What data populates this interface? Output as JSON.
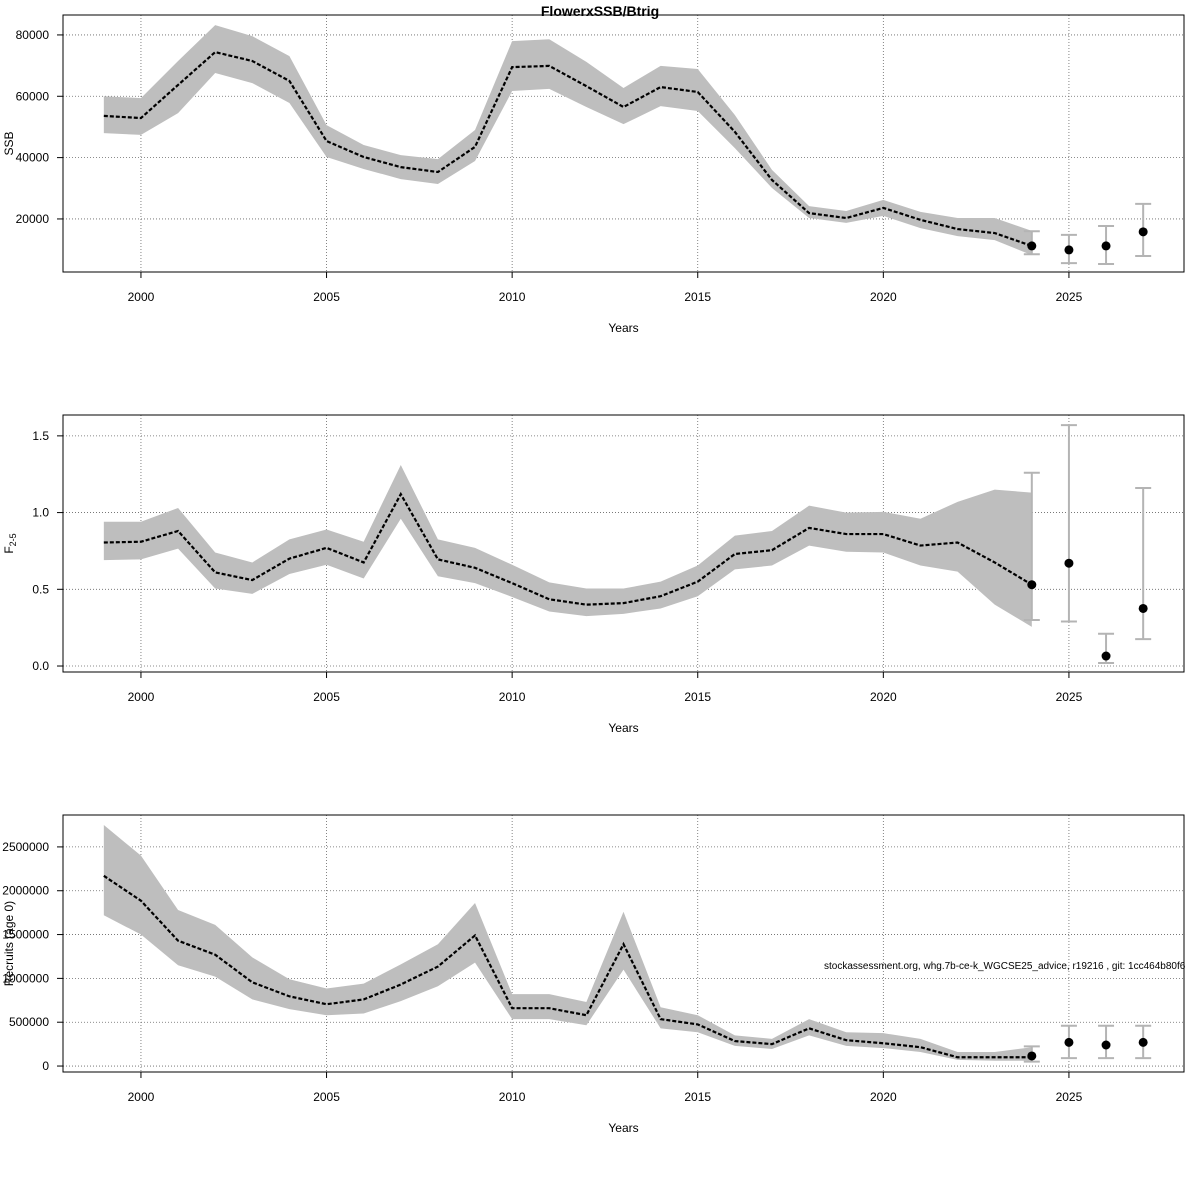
{
  "title": "FlowerxSSB/Btrig",
  "annotation": "stockassessment.org, whg.7b-ce-k_WGCSE25_advice, r19216 , git: 1cc464b80f6",
  "colors": {
    "band": "#bebebe",
    "line": "#000000",
    "errorbar": "#b4b4b4",
    "grid": "#666666"
  },
  "chart_data": [
    {
      "type": "line",
      "title": "FlowerxSSB/Btrig",
      "xlabel": "Years",
      "ylabel": "SSB",
      "ylabel_sub": "",
      "xlim": [
        1997.9,
        2028.1
      ],
      "ylim": [
        2700,
        86500
      ],
      "xticks": [
        2000,
        2005,
        2010,
        2015,
        2020,
        2025
      ],
      "yticks": [
        20000,
        40000,
        60000,
        80000
      ],
      "ytick_labels": [
        "20000",
        "40000",
        "60000",
        "80000"
      ],
      "grid": true,
      "years": [
        1999,
        2000,
        2001,
        2002,
        2003,
        2004,
        2005,
        2006,
        2007,
        2008,
        2009,
        2010,
        2011,
        2012,
        2013,
        2014,
        2015,
        2016,
        2017,
        2018,
        2019,
        2020,
        2021,
        2022,
        2023,
        2024
      ],
      "estimate": [
        53600,
        52900,
        63700,
        74400,
        71500,
        65000,
        45400,
        40200,
        36900,
        35300,
        43500,
        69500,
        69900,
        63300,
        56500,
        63000,
        61400,
        48400,
        32700,
        21900,
        20300,
        23600,
        19700,
        16700,
        15400,
        11200
      ],
      "upper": [
        60000,
        59400,
        71500,
        83200,
        79600,
        73100,
        50600,
        44100,
        40800,
        39500,
        49000,
        78000,
        78600,
        71200,
        62700,
        69900,
        68900,
        53900,
        36000,
        24200,
        22600,
        26200,
        22300,
        20300,
        20300,
        16100
      ],
      "lower": [
        48000,
        47400,
        54500,
        67600,
        64300,
        57800,
        40200,
        36300,
        33000,
        31400,
        38900,
        61700,
        62400,
        56500,
        50900,
        56800,
        55200,
        43100,
        30100,
        20300,
        18700,
        21000,
        17000,
        14400,
        13100,
        8200
      ],
      "forecast": [
        {
          "year": 2024,
          "value": 11200,
          "low": 8500,
          "high": 16000
        },
        {
          "year": 2025,
          "value": 9900,
          "low": 5600,
          "high": 14800
        },
        {
          "year": 2026,
          "value": 11200,
          "low": 5300,
          "high": 17700
        },
        {
          "year": 2027,
          "value": 15800,
          "low": 7900,
          "high": 24900
        }
      ]
    },
    {
      "type": "line",
      "title": "",
      "xlabel": "Years",
      "ylabel": "F",
      "ylabel_sub": "2-5",
      "xlim": [
        1997.9,
        2028.1
      ],
      "ylim": [
        -0.039,
        1.636
      ],
      "xticks": [
        2000,
        2005,
        2010,
        2015,
        2020,
        2025
      ],
      "yticks": [
        0,
        0.5,
        1.0,
        1.5
      ],
      "ytick_labels": [
        "0.0",
        "0.5",
        "1.0",
        "1.5"
      ],
      "grid": true,
      "years": [
        1999,
        2000,
        2001,
        2002,
        2003,
        2004,
        2005,
        2006,
        2007,
        2008,
        2009,
        2010,
        2011,
        2012,
        2013,
        2014,
        2015,
        2016,
        2017,
        2018,
        2019,
        2020,
        2021,
        2022,
        2023,
        2024
      ],
      "estimate": [
        0.805,
        0.81,
        0.88,
        0.61,
        0.56,
        0.7,
        0.77,
        0.675,
        1.12,
        0.695,
        0.64,
        0.54,
        0.435,
        0.4,
        0.41,
        0.455,
        0.55,
        0.73,
        0.755,
        0.9,
        0.86,
        0.86,
        0.785,
        0.805,
        0.675,
        0.53
      ],
      "upper": [
        0.94,
        0.94,
        1.03,
        0.74,
        0.675,
        0.825,
        0.89,
        0.81,
        1.31,
        0.825,
        0.77,
        0.66,
        0.545,
        0.505,
        0.505,
        0.55,
        0.655,
        0.85,
        0.88,
        1.045,
        1.0,
        1.005,
        0.96,
        1.07,
        1.15,
        1.13
      ],
      "lower": [
        0.69,
        0.695,
        0.765,
        0.505,
        0.47,
        0.6,
        0.66,
        0.57,
        0.96,
        0.585,
        0.54,
        0.45,
        0.355,
        0.325,
        0.34,
        0.375,
        0.455,
        0.63,
        0.655,
        0.785,
        0.745,
        0.74,
        0.655,
        0.615,
        0.4,
        0.255
      ],
      "forecast": [
        {
          "year": 2024,
          "value": 0.53,
          "low": 0.3,
          "high": 1.26
        },
        {
          "year": 2025,
          "value": 0.67,
          "low": 0.29,
          "high": 1.57
        },
        {
          "year": 2026,
          "value": 0.065,
          "low": 0.02,
          "high": 0.21
        },
        {
          "year": 2027,
          "value": 0.375,
          "low": 0.175,
          "high": 1.16
        }
      ]
    },
    {
      "type": "line",
      "title": "",
      "xlabel": "Years",
      "ylabel": "Recruits (age 0)",
      "ylabel_sub": "",
      "xlim": [
        1997.9,
        2028.1
      ],
      "ylim": [
        -68000,
        2864000
      ],
      "xticks": [
        2000,
        2005,
        2010,
        2015,
        2020,
        2025
      ],
      "yticks": [
        0,
        500000,
        1000000,
        1500000,
        2000000,
        2500000
      ],
      "ytick_labels": [
        "0",
        "500000",
        "1000000",
        "1500000",
        "2000000",
        "2500000"
      ],
      "grid": true,
      "years": [
        1999,
        2000,
        2001,
        2002,
        2003,
        2004,
        2005,
        2006,
        2007,
        2008,
        2009,
        2010,
        2011,
        2012,
        2013,
        2014,
        2015,
        2016,
        2017,
        2018,
        2019,
        2020,
        2021,
        2022,
        2023,
        2024
      ],
      "estimate": [
        2170000,
        1886000,
        1430000,
        1270000,
        955000,
        795000,
        705000,
        760000,
        930000,
        1135000,
        1490000,
        660000,
        660000,
        580000,
        1390000,
        535000,
        475000,
        285000,
        250000,
        430000,
        295000,
        260000,
        215000,
        100000,
        100000,
        100000
      ],
      "upper": [
        2750000,
        2400000,
        1780000,
        1610000,
        1240000,
        990000,
        885000,
        940000,
        1160000,
        1390000,
        1860000,
        820000,
        820000,
        730000,
        1760000,
        670000,
        580000,
        350000,
        310000,
        535000,
        385000,
        375000,
        310000,
        160000,
        160000,
        215000
      ],
      "lower": [
        1720000,
        1500000,
        1150000,
        1020000,
        760000,
        650000,
        580000,
        600000,
        740000,
        910000,
        1180000,
        535000,
        535000,
        465000,
        1100000,
        430000,
        385000,
        230000,
        195000,
        350000,
        230000,
        205000,
        160000,
        70000,
        60000,
        60000
      ],
      "forecast": [
        {
          "year": 2024,
          "value": 115000,
          "low": 50000,
          "high": 225000
        },
        {
          "year": 2025,
          "value": 270000,
          "low": 90000,
          "high": 460000
        },
        {
          "year": 2026,
          "value": 240000,
          "low": 90000,
          "high": 460000
        },
        {
          "year": 2027,
          "value": 270000,
          "low": 90000,
          "high": 460000
        }
      ]
    }
  ]
}
